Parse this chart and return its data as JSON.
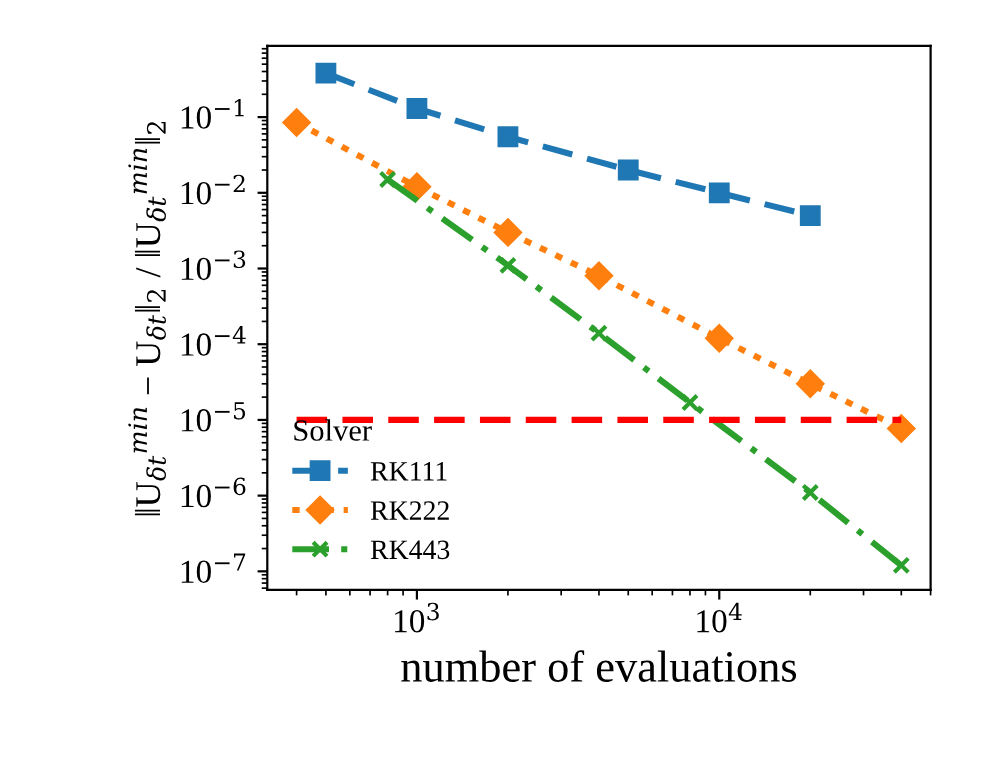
{
  "chart_data": {
    "type": "line",
    "xlabel": "number of evaluations",
    "ylabel": "‖U$_{δt}$$^{min}$ − U$_{δt}$‖$_{2}$ / ‖U$_{δt}$$^{min}$‖$_{2}$",
    "legend_title": "Solver",
    "log": "xy",
    "legend": "bottom left",
    "grid": false,
    "xlim": [
      320,
      50000
    ],
    "ylim": [
      5.7e-08,
      0.87
    ],
    "xticks": [
      {
        "value": 1000,
        "label": "10$^{3}$"
      },
      {
        "value": 10000,
        "label": "10$^{4}$"
      }
    ],
    "yticks": [
      {
        "value": 1e-07,
        "label": "10$^{−7}$"
      },
      {
        "value": 1e-06,
        "label": "10$^{−6}$"
      },
      {
        "value": 1e-05,
        "label": "10$^{−5}$"
      },
      {
        "value": 0.0001,
        "label": "10$^{−4}$"
      },
      {
        "value": 0.001,
        "label": "10$^{−3}$"
      },
      {
        "value": 0.01,
        "label": "10$^{−2}$"
      },
      {
        "value": 0.1,
        "label": "10$^{−1}$"
      }
    ],
    "series": [
      {
        "name": "RK111",
        "color": "#1f77b4",
        "marker": "square",
        "line_style": "dashed",
        "x": [
          500,
          1000,
          2000,
          5000,
          10000,
          20000
        ],
        "values": [
          0.38,
          0.13,
          0.055,
          0.02,
          0.01,
          0.005
        ]
      },
      {
        "name": "RK222",
        "color": "#ff7f0e",
        "marker": "diamond",
        "line_style": "dotted",
        "x": [
          400,
          1000,
          2000,
          4000,
          10000,
          20000,
          40000
        ],
        "values": [
          0.085,
          0.012,
          0.003,
          0.0008,
          0.00012,
          3e-05,
          7.7e-06
        ]
      },
      {
        "name": "RK443",
        "color": "#2ca02c",
        "marker": "cross",
        "line_style": "dashdot",
        "x": [
          800,
          2000,
          4000,
          8000,
          20000,
          40000
        ],
        "values": [
          0.015,
          0.0011,
          0.00014,
          1.7e-05,
          1.1e-06,
          1.2e-07
        ]
      },
      {
        "color": "#ff0000",
        "marker": "none",
        "line_style": "dashed",
        "x": [
          400,
          40000
        ],
        "values": [
          1e-05,
          1e-05
        ]
      }
    ]
  }
}
